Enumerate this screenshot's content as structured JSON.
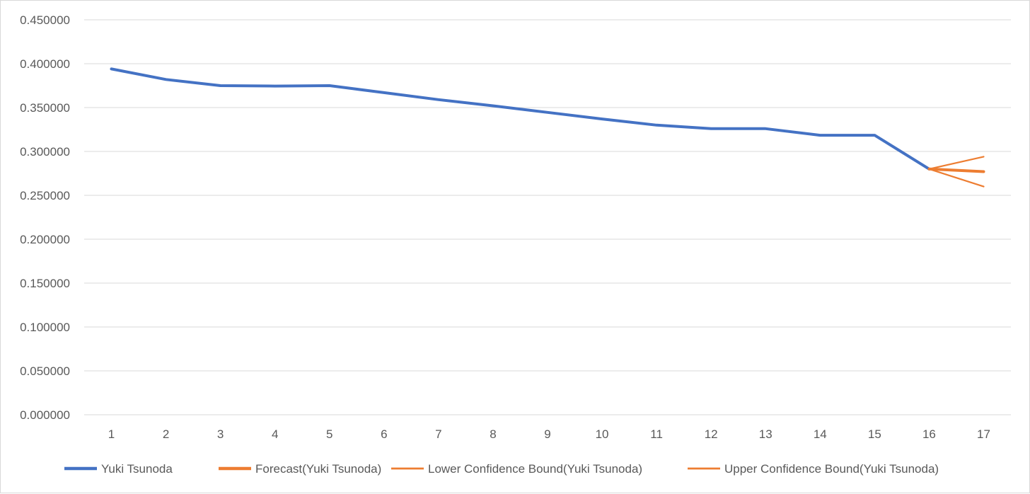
{
  "chart_data": {
    "type": "line",
    "title": "",
    "xlabel": "",
    "ylabel": "",
    "x": [
      1,
      2,
      3,
      4,
      5,
      6,
      7,
      8,
      9,
      10,
      11,
      12,
      13,
      14,
      15,
      16,
      17
    ],
    "ylim": [
      0,
      0.45
    ],
    "yticks": [
      "0.000000",
      "0.050000",
      "0.100000",
      "0.150000",
      "0.200000",
      "0.250000",
      "0.300000",
      "0.350000",
      "0.400000",
      "0.450000"
    ],
    "grid": "horizontal",
    "legend_position": "bottom",
    "series": [
      {
        "name": "Yuki Tsunoda",
        "color": "#4472c4",
        "style": "thick",
        "x": [
          1,
          2,
          3,
          4,
          5,
          6,
          7,
          8,
          9,
          10,
          11,
          12,
          13,
          14,
          15,
          16
        ],
        "values": [
          0.394,
          0.382,
          0.375,
          0.3745,
          0.375,
          0.367,
          0.359,
          0.352,
          0.3445,
          0.337,
          0.33,
          0.326,
          0.326,
          0.3185,
          0.3185,
          0.28
        ]
      },
      {
        "name": "Forecast(Yuki Tsunoda)",
        "color": "#ed7d31",
        "style": "thick",
        "x": [
          16,
          17
        ],
        "values": [
          0.28,
          0.277
        ]
      },
      {
        "name": "Lower Confidence Bound(Yuki Tsunoda)",
        "color": "#ed7d31",
        "style": "thin",
        "x": [
          16,
          17
        ],
        "values": [
          0.28,
          0.26
        ]
      },
      {
        "name": "Upper Confidence Bound(Yuki Tsunoda)",
        "color": "#ed7d31",
        "style": "thin",
        "x": [
          16,
          17
        ],
        "values": [
          0.28,
          0.294
        ]
      }
    ]
  }
}
